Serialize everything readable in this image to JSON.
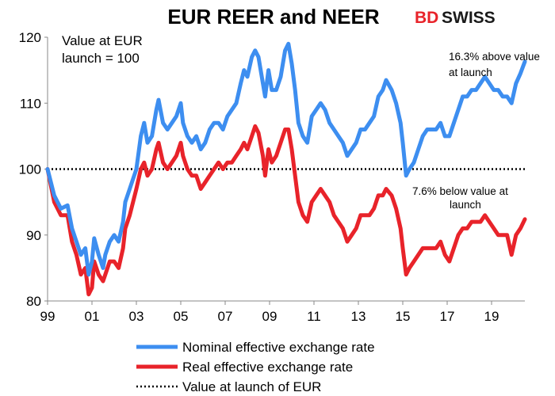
{
  "chart_data": {
    "type": "line",
    "title": "EUR REER and NEER",
    "brand": {
      "part1": "BD",
      "part2": "SWISS",
      "color": "#e8232a"
    },
    "ylim": [
      80,
      120
    ],
    "yticks": [
      80,
      90,
      100,
      110,
      120
    ],
    "xlim": [
      1999,
      2020.5
    ],
    "xticks": [
      {
        "value": 1999,
        "label": "99"
      },
      {
        "value": 2001,
        "label": "01"
      },
      {
        "value": 2003,
        "label": "03"
      },
      {
        "value": 2005,
        "label": "05"
      },
      {
        "value": 2007,
        "label": "07"
      },
      {
        "value": 2009,
        "label": "09"
      },
      {
        "value": 2011,
        "label": "11"
      },
      {
        "value": 2013,
        "label": "13"
      },
      {
        "value": 2015,
        "label": "15"
      },
      {
        "value": 2017,
        "label": "17"
      },
      {
        "value": 2019,
        "label": "19"
      }
    ],
    "baseline": 100,
    "annotations": {
      "top_left": [
        "Value at EUR",
        "launch = 100"
      ],
      "neer_note": [
        "16.3% above value",
        "at launch"
      ],
      "reer_note": [
        "7.6% below value at",
        "launch"
      ]
    },
    "series": [
      {
        "name": "Nominal effective exchange rate",
        "color": "#3d8ef0",
        "points": [
          [
            1999.0,
            100
          ],
          [
            1999.3,
            96
          ],
          [
            1999.6,
            94
          ],
          [
            1999.9,
            94.5
          ],
          [
            2000.1,
            91
          ],
          [
            2000.3,
            89
          ],
          [
            2000.5,
            87
          ],
          [
            2000.7,
            88
          ],
          [
            2000.85,
            84
          ],
          [
            2001.0,
            86
          ],
          [
            2001.1,
            89.5
          ],
          [
            2001.3,
            87
          ],
          [
            2001.5,
            85
          ],
          [
            2001.6,
            87
          ],
          [
            2001.8,
            89
          ],
          [
            2002.0,
            90
          ],
          [
            2002.2,
            89
          ],
          [
            2002.4,
            92
          ],
          [
            2002.5,
            95
          ],
          [
            2002.7,
            97
          ],
          [
            2003.0,
            100
          ],
          [
            2003.2,
            105
          ],
          [
            2003.35,
            107
          ],
          [
            2003.5,
            104
          ],
          [
            2003.7,
            105
          ],
          [
            2003.9,
            109
          ],
          [
            2004.0,
            110.5
          ],
          [
            2004.2,
            107
          ],
          [
            2004.4,
            106
          ],
          [
            2004.6,
            107
          ],
          [
            2004.8,
            108
          ],
          [
            2005.0,
            110
          ],
          [
            2005.1,
            107
          ],
          [
            2005.3,
            105
          ],
          [
            2005.5,
            104
          ],
          [
            2005.7,
            105
          ],
          [
            2005.9,
            103
          ],
          [
            2006.1,
            104
          ],
          [
            2006.3,
            106
          ],
          [
            2006.5,
            107
          ],
          [
            2006.7,
            107
          ],
          [
            2006.9,
            106
          ],
          [
            2007.1,
            108
          ],
          [
            2007.3,
            109
          ],
          [
            2007.5,
            110
          ],
          [
            2007.7,
            113
          ],
          [
            2007.85,
            115
          ],
          [
            2008.0,
            114
          ],
          [
            2008.2,
            117
          ],
          [
            2008.35,
            118
          ],
          [
            2008.5,
            117
          ],
          [
            2008.7,
            113
          ],
          [
            2008.8,
            111
          ],
          [
            2008.95,
            115
          ],
          [
            2009.1,
            112
          ],
          [
            2009.3,
            112
          ],
          [
            2009.5,
            114
          ],
          [
            2009.7,
            118
          ],
          [
            2009.85,
            119
          ],
          [
            2010.0,
            116
          ],
          [
            2010.15,
            112
          ],
          [
            2010.3,
            107
          ],
          [
            2010.5,
            105
          ],
          [
            2010.7,
            104
          ],
          [
            2010.9,
            108
          ],
          [
            2011.1,
            109
          ],
          [
            2011.3,
            110
          ],
          [
            2011.5,
            109
          ],
          [
            2011.7,
            107
          ],
          [
            2011.9,
            106
          ],
          [
            2012.1,
            105
          ],
          [
            2012.3,
            104
          ],
          [
            2012.5,
            102
          ],
          [
            2012.7,
            103
          ],
          [
            2012.9,
            104
          ],
          [
            2013.1,
            106
          ],
          [
            2013.3,
            106
          ],
          [
            2013.5,
            107
          ],
          [
            2013.7,
            108
          ],
          [
            2013.9,
            111
          ],
          [
            2014.1,
            112
          ],
          [
            2014.25,
            113.5
          ],
          [
            2014.5,
            112
          ],
          [
            2014.7,
            110
          ],
          [
            2014.9,
            107
          ],
          [
            2015.0,
            104
          ],
          [
            2015.15,
            99
          ],
          [
            2015.3,
            100
          ],
          [
            2015.5,
            101
          ],
          [
            2015.7,
            103
          ],
          [
            2015.9,
            105
          ],
          [
            2016.1,
            106
          ],
          [
            2016.3,
            106
          ],
          [
            2016.5,
            106
          ],
          [
            2016.7,
            107
          ],
          [
            2016.9,
            105
          ],
          [
            2017.1,
            105
          ],
          [
            2017.3,
            107
          ],
          [
            2017.5,
            109
          ],
          [
            2017.7,
            111
          ],
          [
            2017.9,
            111
          ],
          [
            2018.1,
            112
          ],
          [
            2018.3,
            112
          ],
          [
            2018.5,
            113
          ],
          [
            2018.7,
            114
          ],
          [
            2018.9,
            113
          ],
          [
            2019.1,
            112
          ],
          [
            2019.3,
            112
          ],
          [
            2019.5,
            111
          ],
          [
            2019.7,
            111
          ],
          [
            2019.9,
            110
          ],
          [
            2020.1,
            113
          ],
          [
            2020.3,
            114.5
          ],
          [
            2020.5,
            116.3
          ]
        ]
      },
      {
        "name": "Real effective exchange rate",
        "color": "#e8232a",
        "points": [
          [
            1999.0,
            100
          ],
          [
            1999.3,
            95
          ],
          [
            1999.6,
            93
          ],
          [
            1999.9,
            93
          ],
          [
            2000.1,
            89
          ],
          [
            2000.3,
            87
          ],
          [
            2000.5,
            84
          ],
          [
            2000.7,
            85
          ],
          [
            2000.85,
            81
          ],
          [
            2001.0,
            82
          ],
          [
            2001.1,
            86
          ],
          [
            2001.3,
            84
          ],
          [
            2001.5,
            83
          ],
          [
            2001.6,
            84
          ],
          [
            2001.8,
            86
          ],
          [
            2002.0,
            86
          ],
          [
            2002.2,
            85
          ],
          [
            2002.4,
            88
          ],
          [
            2002.5,
            91
          ],
          [
            2002.7,
            93
          ],
          [
            2003.0,
            97
          ],
          [
            2003.2,
            100
          ],
          [
            2003.35,
            101
          ],
          [
            2003.5,
            99
          ],
          [
            2003.7,
            100
          ],
          [
            2003.9,
            103
          ],
          [
            2004.0,
            104
          ],
          [
            2004.2,
            101
          ],
          [
            2004.4,
            100
          ],
          [
            2004.6,
            101
          ],
          [
            2004.8,
            102
          ],
          [
            2005.0,
            104
          ],
          [
            2005.1,
            102
          ],
          [
            2005.3,
            100
          ],
          [
            2005.5,
            99
          ],
          [
            2005.7,
            99
          ],
          [
            2005.9,
            97
          ],
          [
            2006.1,
            98
          ],
          [
            2006.3,
            99
          ],
          [
            2006.5,
            100
          ],
          [
            2006.7,
            101
          ],
          [
            2006.9,
            100
          ],
          [
            2007.1,
            101
          ],
          [
            2007.3,
            101
          ],
          [
            2007.5,
            102
          ],
          [
            2007.7,
            103
          ],
          [
            2007.85,
            104
          ],
          [
            2008.0,
            103
          ],
          [
            2008.2,
            105
          ],
          [
            2008.35,
            106.5
          ],
          [
            2008.5,
            105.5
          ],
          [
            2008.7,
            102
          ],
          [
            2008.8,
            99
          ],
          [
            2008.95,
            103
          ],
          [
            2009.1,
            101
          ],
          [
            2009.3,
            102
          ],
          [
            2009.5,
            104
          ],
          [
            2009.7,
            106
          ],
          [
            2009.85,
            106
          ],
          [
            2010.0,
            103
          ],
          [
            2010.15,
            99
          ],
          [
            2010.3,
            95
          ],
          [
            2010.5,
            93
          ],
          [
            2010.7,
            92
          ],
          [
            2010.9,
            95
          ],
          [
            2011.1,
            96
          ],
          [
            2011.3,
            97
          ],
          [
            2011.5,
            96
          ],
          [
            2011.7,
            95
          ],
          [
            2011.9,
            93
          ],
          [
            2012.1,
            92
          ],
          [
            2012.3,
            91
          ],
          [
            2012.5,
            89
          ],
          [
            2012.7,
            90
          ],
          [
            2012.9,
            91
          ],
          [
            2013.1,
            93
          ],
          [
            2013.3,
            93
          ],
          [
            2013.5,
            93
          ],
          [
            2013.7,
            94
          ],
          [
            2013.9,
            96
          ],
          [
            2014.1,
            96
          ],
          [
            2014.25,
            97
          ],
          [
            2014.5,
            96
          ],
          [
            2014.7,
            94
          ],
          [
            2014.9,
            91
          ],
          [
            2015.0,
            88
          ],
          [
            2015.15,
            84
          ],
          [
            2015.3,
            85
          ],
          [
            2015.5,
            86
          ],
          [
            2015.7,
            87
          ],
          [
            2015.9,
            88
          ],
          [
            2016.1,
            88
          ],
          [
            2016.3,
            88
          ],
          [
            2016.5,
            88
          ],
          [
            2016.7,
            89
          ],
          [
            2016.9,
            87
          ],
          [
            2017.1,
            86
          ],
          [
            2017.3,
            88
          ],
          [
            2017.5,
            90
          ],
          [
            2017.7,
            91
          ],
          [
            2017.9,
            91
          ],
          [
            2018.1,
            92
          ],
          [
            2018.3,
            92
          ],
          [
            2018.5,
            92
          ],
          [
            2018.7,
            93
          ],
          [
            2018.9,
            92
          ],
          [
            2019.1,
            91
          ],
          [
            2019.3,
            90
          ],
          [
            2019.5,
            90
          ],
          [
            2019.7,
            90
          ],
          [
            2019.9,
            87
          ],
          [
            2020.1,
            90
          ],
          [
            2020.3,
            91
          ],
          [
            2020.5,
            92.4
          ]
        ]
      },
      {
        "name": "Value at launch of EUR",
        "color": "#000000",
        "style": "dotted",
        "value": 100
      }
    ],
    "legend_position": "bottom-center"
  }
}
